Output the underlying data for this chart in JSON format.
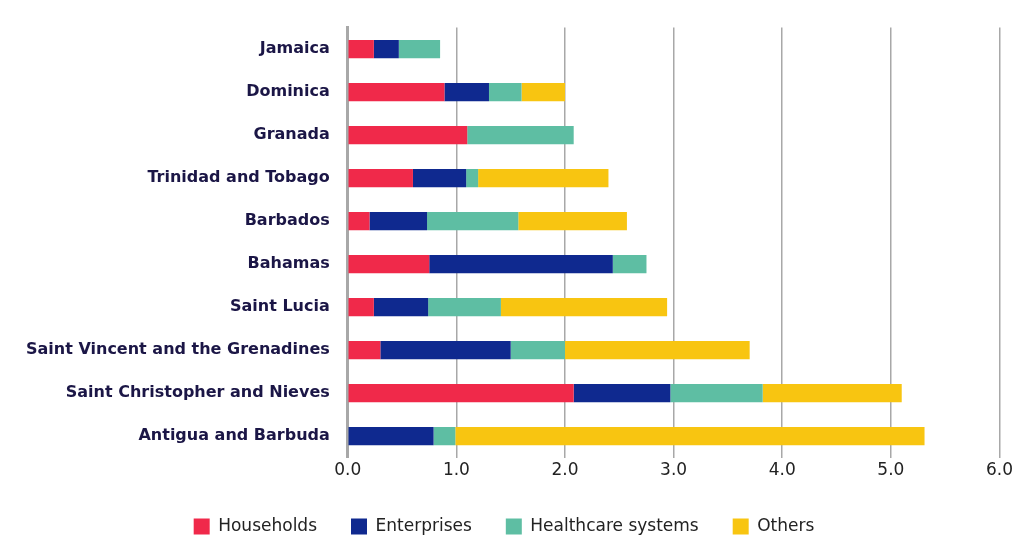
{
  "chart_data": {
    "type": "bar",
    "orientation": "horizontal",
    "stacked": true,
    "categories": [
      "Jamaica",
      "Dominica",
      "Granada",
      "Trinidad and Tobago",
      "Barbados",
      "Bahamas",
      "Saint Lucia",
      "Saint Vincent and the Grenadines",
      "Saint Christopher and Nieves",
      "Antigua and Barbuda"
    ],
    "series": [
      {
        "name": "Households",
        "color": "#f0294a",
        "values": [
          0.24,
          0.89,
          1.1,
          0.6,
          0.2,
          0.75,
          0.24,
          0.3,
          2.08,
          0
        ]
      },
      {
        "name": "Enterprises",
        "color": "#0f298f",
        "values": [
          0.23,
          0.41,
          0,
          0.49,
          0.53,
          1.69,
          0.5,
          1.2,
          0.89,
          0.79
        ]
      },
      {
        "name": "Healthcare systems",
        "color": "#5ebea3",
        "values": [
          0.38,
          0.3,
          0.98,
          0.11,
          0.84,
          0.31,
          0.67,
          0.5,
          0.85,
          0.2
        ]
      },
      {
        "name": "Others",
        "color": "#f8c511",
        "values": [
          0,
          0.4,
          0,
          1.2,
          1.0,
          0,
          1.53,
          1.7,
          1.28,
          4.32
        ]
      }
    ],
    "xlim": [
      0,
      6
    ],
    "xticks": [
      {
        "value": 0,
        "label": "0.0"
      },
      {
        "value": 1,
        "label": "1.0"
      },
      {
        "value": 2,
        "label": "2.0"
      },
      {
        "value": 3,
        "label": "3.0"
      },
      {
        "value": 4,
        "label": "4.0"
      },
      {
        "value": 5,
        "label": "5.0"
      },
      {
        "value": 6,
        "label": "6.0"
      }
    ],
    "grid": "x",
    "legend": "bottom"
  }
}
